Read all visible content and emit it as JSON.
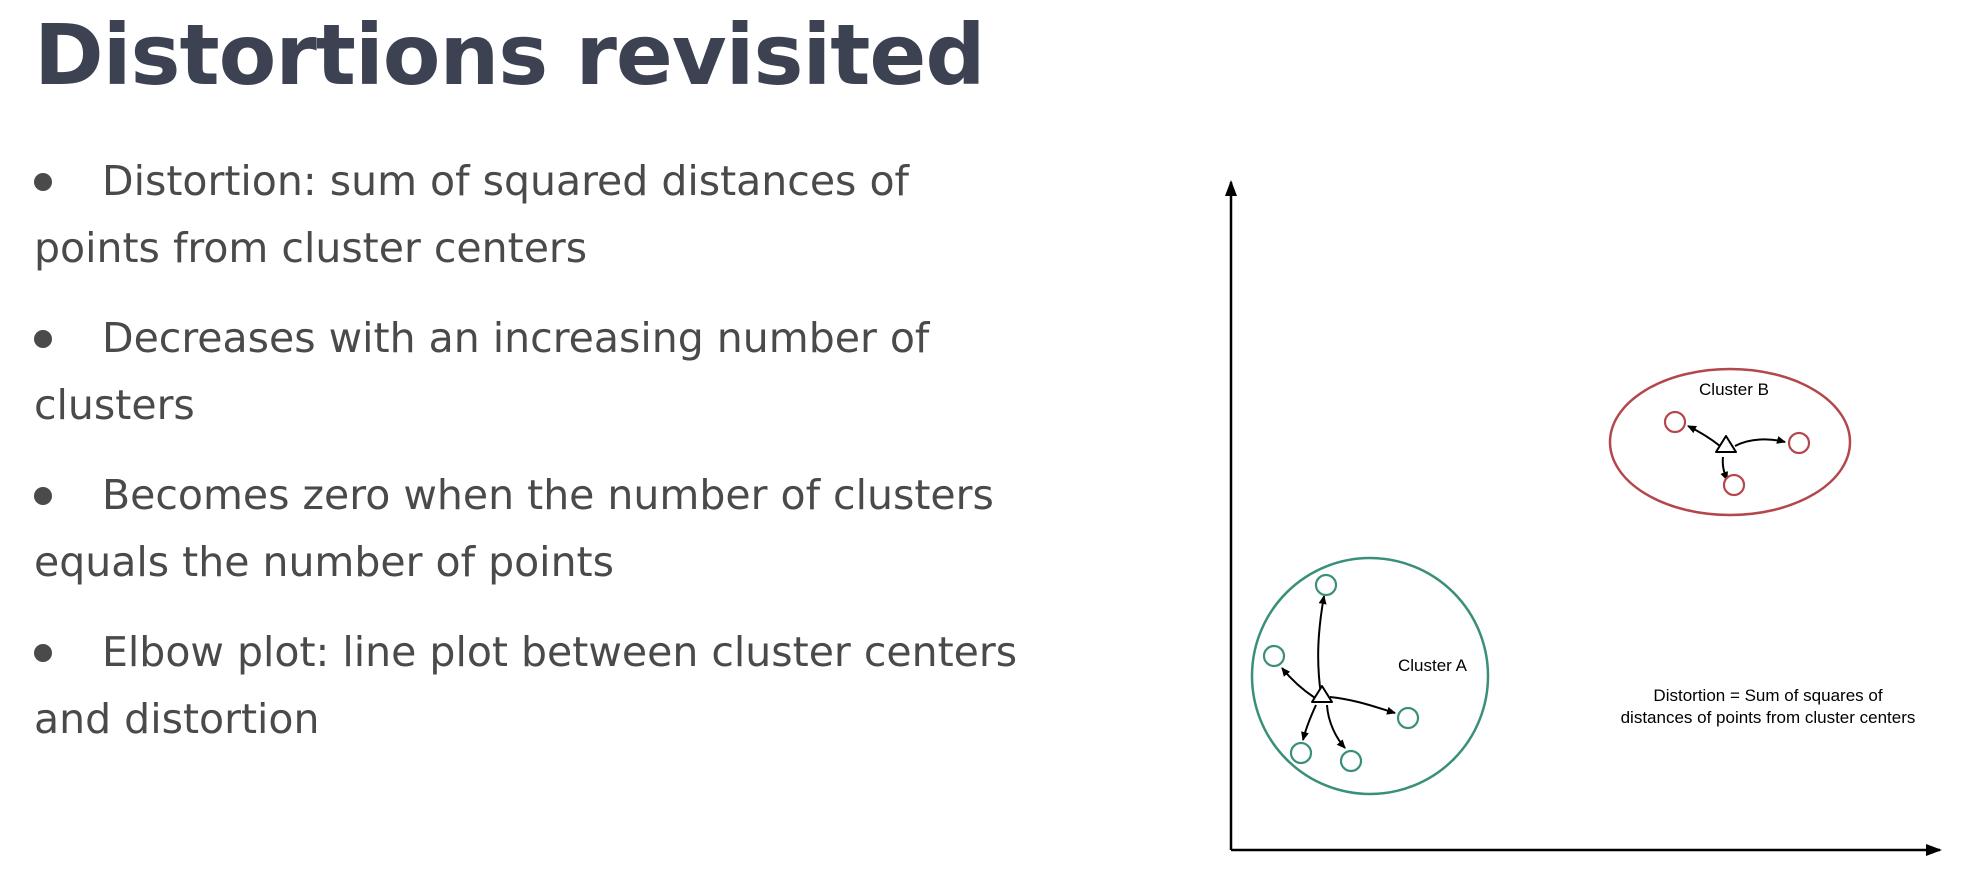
{
  "slide": {
    "title": "Distortions revisited"
  },
  "bullets": [
    {
      "text": "Distortion: sum of squared distances of points from cluster centers"
    },
    {
      "text": "Decreases with an increasing number of clusters"
    },
    {
      "text": "Becomes zero when the number of clusters equals the number of points"
    },
    {
      "text": "Elbow plot: line plot between cluster centers and distortion"
    }
  ],
  "diagram": {
    "cluster_a": {
      "label": "Cluster A",
      "color": "#3a8f7a"
    },
    "cluster_b": {
      "label": "Cluster B",
      "color": "#b3474b"
    },
    "caption": {
      "line1": "Distortion = Sum of squares of",
      "line2": "distances of points from cluster centers"
    },
    "axis_color": "#000000",
    "arrow_color": "#000000",
    "center_marker": "triangle-icon",
    "point_marker": "circle-icon"
  },
  "colors": {
    "title": "#3d4253",
    "body_text": "#4a4a4a",
    "background": "#ffffff"
  }
}
